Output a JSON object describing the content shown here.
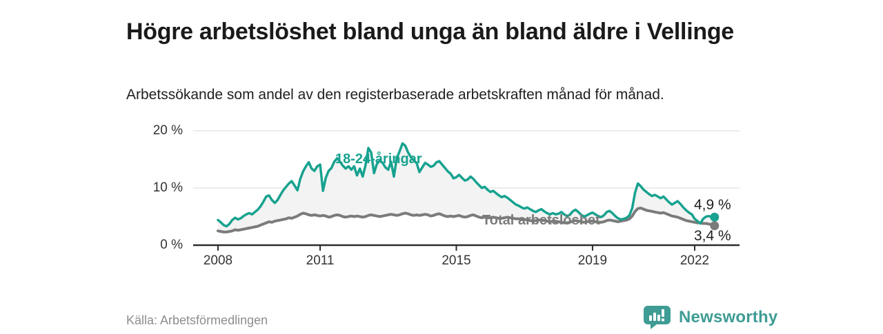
{
  "header": {
    "title": "Högre arbetslöshet bland unga än bland äldre i Vellinge",
    "subtitle": "Arbetssökande som andel av den registerbaserade arbetskraften månad för månad."
  },
  "footer": {
    "source": "Källa: Arbetsförmedlingen",
    "brand": "Newsworthy"
  },
  "colors": {
    "young_line": "#17a28f",
    "total_line": "#7b7b7b",
    "area_fill": "#f3f3f3",
    "grid": "#e1e1e1",
    "axis": "#2b2b2b",
    "brand_teal": "#3e9c94"
  },
  "chart_data": {
    "type": "line",
    "x_start": "2008-01",
    "x_end": "2022-08",
    "x_frequency": "monthly",
    "x_tick_labels": [
      "2008",
      "2011",
      "2015",
      "2019",
      "2022"
    ],
    "y_tick_labels": [
      "0 %",
      "10 %",
      "20 %"
    ],
    "y_tick_values": [
      0,
      10,
      20
    ],
    "ylim": [
      0,
      20
    ],
    "grid": "horizontal-only",
    "legend_position": "inline-labels",
    "series": [
      {
        "name": "18-24-åringar",
        "color": "#17a28f",
        "end_value_label": "4,9 %",
        "end_value": 4.9,
        "values": [
          4.4,
          4.0,
          3.5,
          3.3,
          3.7,
          4.4,
          4.8,
          4.5,
          4.7,
          5.1,
          5.4,
          5.6,
          5.4,
          5.8,
          6.2,
          6.8,
          7.6,
          8.5,
          8.7,
          7.9,
          7.4,
          7.9,
          8.8,
          9.6,
          10.2,
          10.8,
          11.2,
          10.4,
          9.6,
          11.6,
          12.9,
          13.8,
          14.5,
          13.4,
          13.0,
          13.8,
          14.1,
          9.5,
          11.8,
          13.0,
          13.5,
          14.6,
          15.2,
          14.6,
          13.9,
          13.4,
          13.8,
          13.2,
          13.8,
          12.2,
          13.4,
          12.0,
          14.0,
          17.0,
          16.2,
          12.6,
          14.2,
          14.8,
          14.4,
          13.6,
          13.2,
          14.6,
          12.0,
          15.2,
          16.4,
          17.8,
          17.4,
          16.2,
          15.4,
          14.8,
          14.4,
          12.8,
          13.6,
          14.4,
          14.1,
          13.7,
          13.9,
          14.5,
          14.7,
          14.1,
          13.5,
          12.9,
          12.5,
          11.7,
          11.9,
          12.3,
          11.8,
          11.3,
          11.5,
          12.0,
          11.6,
          11.0,
          10.5,
          10.0,
          10.2,
          9.7,
          9.3,
          9.5,
          9.1,
          8.7,
          8.4,
          8.6,
          8.3,
          7.9,
          7.5,
          7.1,
          6.9,
          6.6,
          6.4,
          6.6,
          6.3,
          6.0,
          5.8,
          6.1,
          6.3,
          5.9,
          5.6,
          5.4,
          5.6,
          5.4,
          5.5,
          5.8,
          5.4,
          5.1,
          5.3,
          5.9,
          6.2,
          5.8,
          5.3,
          5.0,
          5.2,
          5.5,
          5.7,
          5.4,
          5.1,
          4.9,
          5.2,
          5.8,
          6.0,
          5.6,
          5.1,
          4.7,
          4.5,
          4.6,
          4.8,
          5.2,
          6.5,
          9.2,
          10.8,
          10.3,
          9.7,
          9.3,
          8.9,
          8.6,
          8.8,
          8.5,
          8.2,
          8.5,
          8.0,
          7.5,
          7.1,
          7.4,
          7.7,
          7.2,
          6.6,
          6.1,
          5.7,
          5.4,
          4.6,
          4.2,
          3.8,
          4.6,
          5.0,
          5.1,
          4.9,
          4.9
        ]
      },
      {
        "name": "Total arbetslöshet",
        "color": "#7b7b7b",
        "end_value_label": "3,4 %",
        "end_value": 3.4,
        "values": [
          2.5,
          2.4,
          2.3,
          2.3,
          2.4,
          2.5,
          2.7,
          2.6,
          2.7,
          2.8,
          2.9,
          3.0,
          3.1,
          3.2,
          3.3,
          3.5,
          3.7,
          3.9,
          4.1,
          4.0,
          4.2,
          4.3,
          4.4,
          4.5,
          4.6,
          4.8,
          4.7,
          4.9,
          5.1,
          5.4,
          5.6,
          5.5,
          5.3,
          5.2,
          5.3,
          5.2,
          5.1,
          5.2,
          5.1,
          4.9,
          5.0,
          5.2,
          5.3,
          5.2,
          5.0,
          4.9,
          5.0,
          5.1,
          5.0,
          5.1,
          5.0,
          4.9,
          5.0,
          5.2,
          5.3,
          5.2,
          5.1,
          5.0,
          5.1,
          5.2,
          5.3,
          5.4,
          5.3,
          5.2,
          5.3,
          5.5,
          5.6,
          5.5,
          5.3,
          5.2,
          5.3,
          5.2,
          5.3,
          5.4,
          5.3,
          5.1,
          5.2,
          5.4,
          5.5,
          5.3,
          5.1,
          5.0,
          5.1,
          5.0,
          5.1,
          5.2,
          5.0,
          4.9,
          5.0,
          5.2,
          5.3,
          5.1,
          4.9,
          4.8,
          4.9,
          4.8,
          4.8,
          4.9,
          4.8,
          4.7,
          4.7,
          4.8,
          4.9,
          4.8,
          4.7,
          4.6,
          4.6,
          4.5,
          4.5,
          4.4,
          4.3,
          4.2,
          4.3,
          4.4,
          4.4,
          4.3,
          4.2,
          4.1,
          4.2,
          4.1,
          4.1,
          4.0,
          3.9,
          3.9,
          4.0,
          4.2,
          4.3,
          4.2,
          4.1,
          4.0,
          4.1,
          4.2,
          4.2,
          4.1,
          4.0,
          4.0,
          4.1,
          4.3,
          4.4,
          4.3,
          4.2,
          4.1,
          4.2,
          4.3,
          4.4,
          4.6,
          5.1,
          5.9,
          6.4,
          6.5,
          6.3,
          6.1,
          6.0,
          5.9,
          5.8,
          5.7,
          5.6,
          5.7,
          5.5,
          5.3,
          5.1,
          5.0,
          4.9,
          4.7,
          4.5,
          4.3,
          4.2,
          4.1,
          4.0,
          3.9,
          3.9,
          3.8,
          3.8,
          3.7,
          3.6,
          3.4
        ]
      }
    ]
  }
}
